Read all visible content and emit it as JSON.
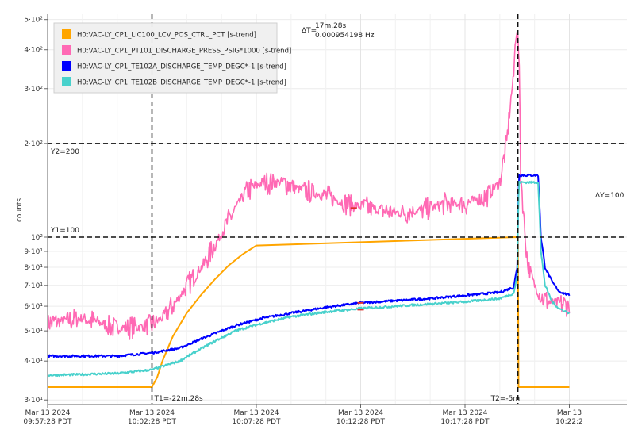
{
  "chart_data": {
    "type": "line",
    "title": "",
    "ylabel": "counts",
    "xlabel": "",
    "y_scale": "log",
    "ylim": [
      29,
      520
    ],
    "x_unit": "minutes after 09:57:28 PDT",
    "xlim": [
      0,
      1500
    ],
    "grid": true,
    "legend_position": "top-left",
    "x_ticks": [
      {
        "x": 0,
        "date": "Mar 13 2024",
        "time": "09:57:28 PDT"
      },
      {
        "x": 300,
        "date": "Mar 13 2024",
        "time": "10:02:28 PDT"
      },
      {
        "x": 600,
        "date": "Mar 13 2024",
        "time": "10:07:28 PDT"
      },
      {
        "x": 900,
        "date": "Mar 13 2024",
        "time": "10:12:28 PDT"
      },
      {
        "x": 1200,
        "date": "Mar 13 2024",
        "time": "10:17:28 PDT"
      },
      {
        "x": 1500,
        "date": "Mar 13",
        "time": "10:22:2"
      }
    ],
    "y_ticks": [
      {
        "value": 30,
        "label": "3·10¹"
      },
      {
        "value": 40,
        "label": "4·10¹"
      },
      {
        "value": 50,
        "label": "5·10¹"
      },
      {
        "value": 60,
        "label": "6·10¹"
      },
      {
        "value": 70,
        "label": "7·10¹"
      },
      {
        "value": 80,
        "label": "8·10¹"
      },
      {
        "value": 90,
        "label": "9·10¹"
      },
      {
        "value": 100,
        "label": "10²"
      },
      {
        "value": 200,
        "label": "2·10²"
      },
      {
        "value": 300,
        "label": "3·10²"
      },
      {
        "value": 400,
        "label": "4·10²"
      },
      {
        "value": 500,
        "label": "5·10²"
      }
    ],
    "series": [
      {
        "name": "H0:VAC-LY_CP1_LIC100_LCV_POS_CTRL_PCT [s-trend]",
        "color": "#FFA500",
        "x": [
          0,
          300,
          315,
          330,
          360,
          400,
          440,
          480,
          520,
          560,
          600,
          1350,
          1352,
          1354,
          1360,
          1500
        ],
        "y": [
          33,
          33,
          35.5,
          40,
          48,
          57,
          65,
          73,
          81,
          88,
          94,
          100,
          100,
          33,
          33,
          33
        ],
        "noise": 0
      },
      {
        "name": "H0:VAC-LY_CP1_PT101_DISCHARGE_PRESS_PSIG*1000 [s-trend]",
        "color": "#FF69B4",
        "x": [
          0,
          100,
          200,
          295,
          330,
          370,
          410,
          450,
          490,
          530,
          570,
          620,
          680,
          720,
          780,
          860,
          940,
          1000,
          1080,
          1140,
          1200,
          1260,
          1300,
          1320,
          1340,
          1345,
          1350,
          1355,
          1360,
          1370,
          1380,
          1400,
          1420,
          1440,
          1480,
          1500
        ],
        "y": [
          53,
          55,
          51,
          52,
          55,
          62,
          72,
          82,
          98,
          118,
          140,
          150,
          150,
          143,
          138,
          128,
          123,
          120,
          122,
          128,
          128,
          135,
          150,
          200,
          330,
          430,
          470,
          380,
          160,
          110,
          82,
          70,
          64,
          62,
          61,
          60
        ],
        "noise": 0.06
      },
      {
        "name": "H0:VAC-LY_CP1_TE102A_DISCHARGE_TEMP_DEGC*-1 [s-trend]",
        "color": "#0000FF",
        "x": [
          0,
          200,
          300,
          380,
          460,
          540,
          620,
          700,
          800,
          900,
          1000,
          1100,
          1200,
          1300,
          1340,
          1350,
          1355,
          1410,
          1418,
          1430,
          1450,
          1470,
          1500
        ],
        "y": [
          41.5,
          41.5,
          42.5,
          44,
          48,
          52,
          55,
          57,
          59.5,
          61.5,
          62.5,
          63.5,
          65,
          66.5,
          69,
          80,
          158,
          158,
          100,
          80,
          72,
          67,
          65
        ],
        "noise": 0.008
      },
      {
        "name": "H0:VAC-LY_CP1_TE102B_DISCHARGE_TEMP_DEGC*-1 [s-trend]",
        "color": "#48D1CC",
        "x": [
          0,
          200,
          300,
          380,
          460,
          540,
          620,
          700,
          800,
          900,
          1000,
          1100,
          1200,
          1300,
          1340,
          1350,
          1355,
          1410,
          1418,
          1430,
          1450,
          1470,
          1500
        ],
        "y": [
          36,
          36.5,
          37.5,
          40,
          45,
          50,
          53,
          55.5,
          57.5,
          59,
          60,
          61,
          62,
          63.5,
          66,
          75,
          150,
          150,
          90,
          70,
          62,
          59,
          57
        ],
        "noise": 0.008
      }
    ],
    "gap_markers": [
      {
        "series": 1,
        "x": 880,
        "y": 124
      },
      {
        "series": 2,
        "x": 900,
        "y": 61.5
      },
      {
        "series": 3,
        "x": 900,
        "y": 58.5
      }
    ],
    "cursors": {
      "t1": {
        "x": 300,
        "label": "T1=-22m,28s"
      },
      "t2": {
        "x": 1352,
        "label": "T2=-5m"
      },
      "y1": {
        "value": 100,
        "label": "Y1=100"
      },
      "y2": {
        "value": 200,
        "label": "Y2=200"
      },
      "delta_t": {
        "label": "ΔT=",
        "value": "17m,28s",
        "freq": "0.000954198 Hz"
      },
      "delta_y": {
        "label": "ΔY=100"
      }
    }
  }
}
